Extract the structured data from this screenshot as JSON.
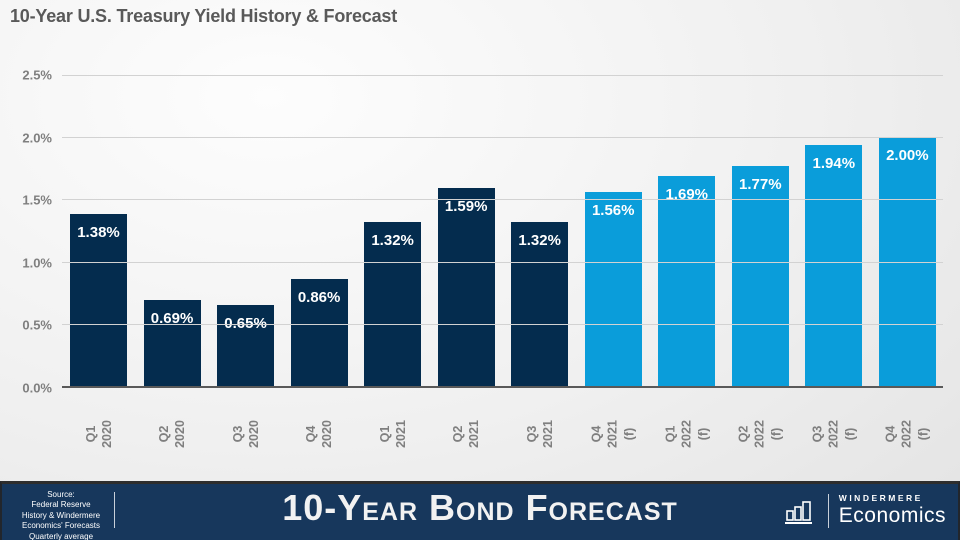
{
  "header": {
    "title": "10-Year U.S. Treasury Yield History & Forecast"
  },
  "chart_data": {
    "type": "bar",
    "title": "10-Year U.S. Treasury Yield History & Forecast",
    "categories": [
      [
        "Q1 2020"
      ],
      [
        "Q2 2020"
      ],
      [
        "Q3 2020"
      ],
      [
        "Q4 2020"
      ],
      [
        "Q1 2021"
      ],
      [
        "Q2 2021"
      ],
      [
        "Q3 2021"
      ],
      [
        "Q4",
        "2021 (f)"
      ],
      [
        "Q1",
        "2022 (f)"
      ],
      [
        "Q2",
        "2022 (f)"
      ],
      [
        "Q3",
        "2022 (f)"
      ],
      [
        "Q4",
        "2022 (f)"
      ]
    ],
    "values": [
      1.38,
      0.69,
      0.65,
      0.86,
      1.32,
      1.59,
      1.32,
      1.56,
      1.69,
      1.77,
      1.94,
      2.0
    ],
    "bar_labels": [
      "1.38%",
      "0.69%",
      "0.65%",
      "0.86%",
      "1.32%",
      "1.59%",
      "1.32%",
      "1.56%",
      "1.69%",
      "1.77%",
      "1.94%",
      "2.00%"
    ],
    "series_membership": [
      "history",
      "history",
      "history",
      "history",
      "history",
      "history",
      "history",
      "forecast",
      "forecast",
      "forecast",
      "forecast",
      "forecast"
    ],
    "series": [
      {
        "name": "history",
        "color": "#042c4e"
      },
      {
        "name": "forecast",
        "color": "#0a9dda"
      }
    ],
    "y_ticks": [
      "0.0%",
      "0.5%",
      "1.0%",
      "1.5%",
      "2.0%",
      "2.5%"
    ],
    "ylim": [
      0,
      2.5
    ],
    "grid": true,
    "legend": "none",
    "xlabel": "",
    "ylabel": ""
  },
  "footer": {
    "source_lines": [
      "Source:",
      "Federal Reserve",
      "History & Windermere",
      "Economics' Forecasts",
      "Quarterly average"
    ],
    "banner_title": "10-Year Bond Forecast",
    "banner_background": "#17375c",
    "logo": {
      "icon": "bar-chart-icon",
      "brand_top": "WINDERMERE",
      "brand_bottom": "Economics"
    }
  }
}
